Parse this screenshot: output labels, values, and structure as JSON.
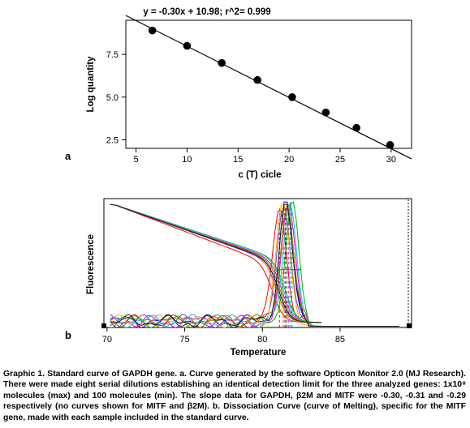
{
  "chart_data": [
    {
      "type": "scatter",
      "title": "y = -0.30x + 10.98; r^2= 0.999",
      "xlabel": "c (T) cicle",
      "ylabel": "Log quantity",
      "panel_label": "a",
      "xlim": [
        4,
        32
      ],
      "ylim": [
        2.0,
        9.5
      ],
      "xticks": [
        "5",
        "10",
        "15",
        "20",
        "25",
        "30"
      ],
      "yticks": [
        "2.5",
        "5.0",
        "7.5"
      ],
      "fit": {
        "slope": -0.3,
        "intercept": 10.98
      },
      "points": {
        "x": [
          6.6,
          10.0,
          13.4,
          16.9,
          20.3,
          23.6,
          26.6,
          29.9
        ],
        "y": [
          8.9,
          8.0,
          7.0,
          6.0,
          5.0,
          4.1,
          3.2,
          2.2
        ]
      },
      "grid": false,
      "legend": "none"
    },
    {
      "type": "line",
      "xlabel": "Temperature",
      "ylabel": "Fluorescence",
      "panel_label": "b",
      "xlim": [
        69.8,
        89.6
      ],
      "ylim": [
        0,
        1.02
      ],
      "xticks": [
        "70",
        "75",
        "80",
        "85"
      ],
      "grid": false,
      "legend": "none",
      "series": [
        {
          "color": "#ff0000",
          "melt_temp": 81.1,
          "drop": 0.7
        },
        {
          "color": "#0000ff",
          "melt_temp": 81.5,
          "drop": 0.62
        },
        {
          "color": "#e000e0",
          "melt_temp": 81.7,
          "drop": 0.6
        },
        {
          "color": "#7a3fbf",
          "melt_temp": 81.4,
          "drop": 0.64
        },
        {
          "color": "#00b000",
          "melt_temp": 81.9,
          "drop": 0.58
        },
        {
          "color": "#ffa500",
          "melt_temp": 81.3,
          "drop": 0.55
        },
        {
          "color": "#00c8e0",
          "melt_temp": 81.8,
          "drop": 0.57
        },
        {
          "color": "#9a7b00",
          "melt_temp": 81.6,
          "drop": 0.61
        },
        {
          "color": "#1c1c1c",
          "melt_temp": 81.5,
          "drop": 0.63
        }
      ]
    }
  ],
  "caption": "Graphic 1. Standard curve of GAPDH gene. a. Curve generated by the software Opticon Monitor 2.0 (MJ Research). There were made eight serial dilutions establishing an identical detection limit for the three analyzed genes: 1x10⁸ molecules (max) and 100 molecules (min). The slope data for GAPDH, β2M and MITF were -0.30, -0.31 and -0.29 respectively (no curves shown for MITF and β2M). b. Dissociation Curve (curve of Melting), specific for the MITF gene, made with each sample included in the standard curve."
}
